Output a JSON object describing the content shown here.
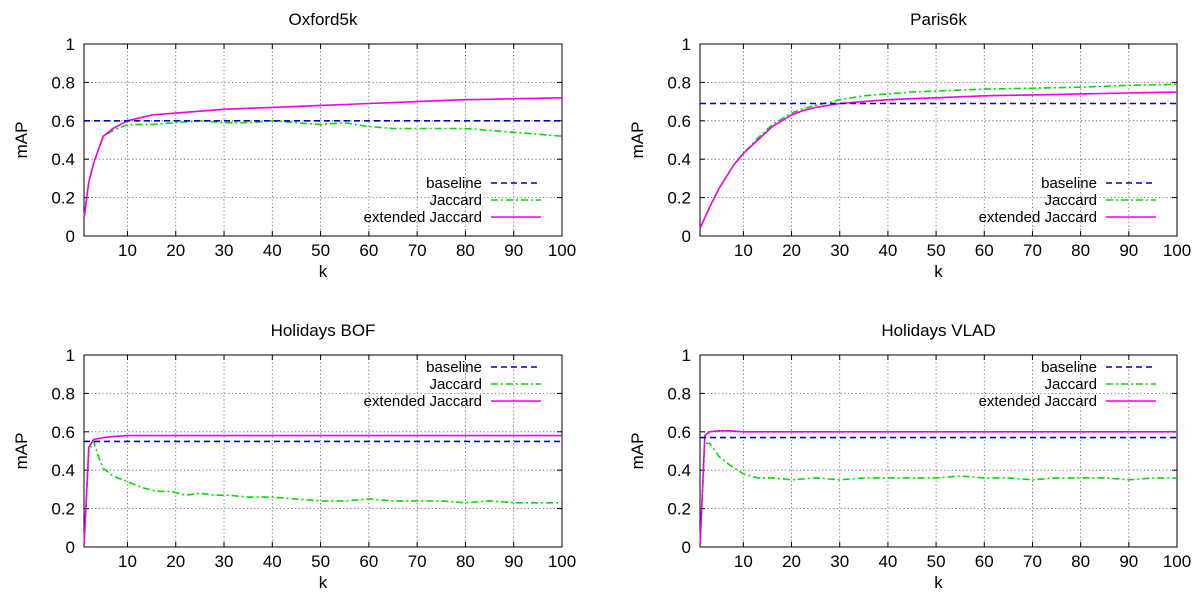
{
  "chart_data": [
    {
      "type": "line",
      "title": "Oxford5k",
      "xlabel": "k",
      "ylabel": "mAP",
      "xlim": [
        1,
        100
      ],
      "ylim": [
        0,
        1
      ],
      "xticks": [
        10,
        20,
        30,
        40,
        50,
        60,
        70,
        80,
        90,
        100
      ],
      "yticks": [
        0,
        0.2,
        0.4,
        0.6,
        0.8,
        1
      ],
      "grid": true,
      "legend_position": "bottom-right",
      "series": [
        {
          "name": "baseline",
          "color": "#0000cc",
          "dash": "dashed",
          "x": [
            1,
            100
          ],
          "y": [
            0.6,
            0.6
          ]
        },
        {
          "name": "Jaccard",
          "color": "#00dd00",
          "dash": "dash-dot",
          "x": [
            1,
            2,
            3,
            5,
            7,
            10,
            15,
            20,
            25,
            30,
            35,
            40,
            45,
            50,
            55,
            60,
            65,
            70,
            75,
            80,
            85,
            90,
            95,
            100
          ],
          "y": [
            0.09,
            0.28,
            0.38,
            0.52,
            0.55,
            0.58,
            0.58,
            0.59,
            0.6,
            0.59,
            0.59,
            0.6,
            0.59,
            0.58,
            0.59,
            0.57,
            0.56,
            0.56,
            0.56,
            0.56,
            0.55,
            0.54,
            0.53,
            0.52
          ]
        },
        {
          "name": "extended Jaccard",
          "color": "#ee00ee",
          "dash": "solid",
          "x": [
            1,
            2,
            3,
            5,
            7,
            10,
            15,
            20,
            25,
            30,
            35,
            40,
            45,
            50,
            55,
            60,
            65,
            70,
            75,
            80,
            85,
            90,
            95,
            100
          ],
          "y": [
            0.09,
            0.28,
            0.38,
            0.52,
            0.56,
            0.6,
            0.63,
            0.64,
            0.65,
            0.66,
            0.665,
            0.67,
            0.675,
            0.68,
            0.685,
            0.69,
            0.695,
            0.7,
            0.705,
            0.71,
            0.712,
            0.715,
            0.717,
            0.72
          ]
        }
      ]
    },
    {
      "type": "line",
      "title": "Paris6k",
      "xlabel": "k",
      "ylabel": "mAP",
      "xlim": [
        1,
        100
      ],
      "ylim": [
        0,
        1
      ],
      "xticks": [
        10,
        20,
        30,
        40,
        50,
        60,
        70,
        80,
        90,
        100
      ],
      "yticks": [
        0,
        0.2,
        0.4,
        0.6,
        0.8,
        1
      ],
      "grid": true,
      "legend_position": "bottom-right",
      "series": [
        {
          "name": "baseline",
          "color": "#0000cc",
          "dash": "dashed",
          "x": [
            1,
            100
          ],
          "y": [
            0.69,
            0.69
          ]
        },
        {
          "name": "Jaccard",
          "color": "#00dd00",
          "dash": "dash-dot",
          "x": [
            1,
            3,
            5,
            8,
            10,
            13,
            16,
            18,
            20,
            22,
            25,
            30,
            35,
            40,
            45,
            50,
            60,
            70,
            80,
            90,
            100
          ],
          "y": [
            0.04,
            0.15,
            0.25,
            0.37,
            0.43,
            0.51,
            0.58,
            0.61,
            0.64,
            0.66,
            0.68,
            0.71,
            0.73,
            0.74,
            0.75,
            0.755,
            0.765,
            0.77,
            0.775,
            0.785,
            0.79
          ]
        },
        {
          "name": "extended Jaccard",
          "color": "#ee00ee",
          "dash": "solid",
          "x": [
            1,
            3,
            5,
            8,
            10,
            13,
            16,
            18,
            20,
            22,
            25,
            30,
            35,
            40,
            45,
            50,
            60,
            70,
            80,
            90,
            100
          ],
          "y": [
            0.04,
            0.15,
            0.25,
            0.37,
            0.43,
            0.5,
            0.57,
            0.6,
            0.63,
            0.65,
            0.67,
            0.69,
            0.7,
            0.71,
            0.715,
            0.72,
            0.73,
            0.735,
            0.74,
            0.745,
            0.75
          ]
        }
      ]
    },
    {
      "type": "line",
      "title": "Holidays BOF",
      "xlabel": "k",
      "ylabel": "mAP",
      "xlim": [
        1,
        100
      ],
      "ylim": [
        0,
        1
      ],
      "xticks": [
        10,
        20,
        30,
        40,
        50,
        60,
        70,
        80,
        90,
        100
      ],
      "yticks": [
        0,
        0.2,
        0.4,
        0.6,
        0.8,
        1
      ],
      "grid": true,
      "legend_position": "top-right",
      "series": [
        {
          "name": "baseline",
          "color": "#0000cc",
          "dash": "dashed",
          "x": [
            1,
            100
          ],
          "y": [
            0.55,
            0.55
          ]
        },
        {
          "name": "Jaccard",
          "color": "#00dd00",
          "dash": "dash-dot",
          "x": [
            1,
            2,
            3,
            4,
            5,
            7,
            10,
            13,
            16,
            19,
            22,
            25,
            28,
            31,
            35,
            40,
            45,
            50,
            55,
            60,
            65,
            70,
            75,
            80,
            85,
            90,
            95,
            100
          ],
          "y": [
            0.0,
            0.5,
            0.55,
            0.47,
            0.41,
            0.37,
            0.34,
            0.31,
            0.29,
            0.29,
            0.27,
            0.28,
            0.27,
            0.27,
            0.26,
            0.26,
            0.25,
            0.24,
            0.24,
            0.25,
            0.24,
            0.24,
            0.24,
            0.23,
            0.24,
            0.23,
            0.23,
            0.23
          ]
        },
        {
          "name": "extended Jaccard",
          "color": "#ee00ee",
          "dash": "solid",
          "x": [
            1,
            2,
            3,
            5,
            7,
            10,
            20,
            30,
            40,
            50,
            60,
            70,
            80,
            90,
            100
          ],
          "y": [
            0.0,
            0.52,
            0.56,
            0.57,
            0.575,
            0.58,
            0.58,
            0.58,
            0.58,
            0.58,
            0.58,
            0.58,
            0.58,
            0.58,
            0.58
          ]
        }
      ]
    },
    {
      "type": "line",
      "title": "Holidays VLAD",
      "xlabel": "k",
      "ylabel": "mAP",
      "xlim": [
        1,
        100
      ],
      "ylim": [
        0,
        1
      ],
      "xticks": [
        10,
        20,
        30,
        40,
        50,
        60,
        70,
        80,
        90,
        100
      ],
      "yticks": [
        0,
        0.2,
        0.4,
        0.6,
        0.8,
        1
      ],
      "grid": true,
      "legend_position": "top-right",
      "series": [
        {
          "name": "baseline",
          "color": "#0000cc",
          "dash": "dashed",
          "x": [
            1,
            100
          ],
          "y": [
            0.57,
            0.57
          ]
        },
        {
          "name": "Jaccard",
          "color": "#00dd00",
          "dash": "dash-dot",
          "x": [
            1,
            2,
            3,
            5,
            7,
            10,
            13,
            16,
            20,
            25,
            30,
            35,
            40,
            45,
            50,
            55,
            60,
            65,
            70,
            75,
            80,
            85,
            90,
            95,
            100
          ],
          "y": [
            0.0,
            0.54,
            0.54,
            0.47,
            0.43,
            0.38,
            0.36,
            0.36,
            0.35,
            0.36,
            0.35,
            0.36,
            0.36,
            0.36,
            0.36,
            0.37,
            0.36,
            0.36,
            0.35,
            0.36,
            0.36,
            0.36,
            0.35,
            0.36,
            0.36
          ]
        },
        {
          "name": "extended Jaccard",
          "color": "#ee00ee",
          "dash": "solid",
          "x": [
            1,
            2,
            3,
            5,
            7,
            10,
            20,
            30,
            40,
            50,
            60,
            70,
            80,
            90,
            100
          ],
          "y": [
            0.0,
            0.58,
            0.6,
            0.605,
            0.605,
            0.6,
            0.6,
            0.6,
            0.6,
            0.6,
            0.6,
            0.6,
            0.6,
            0.6,
            0.6
          ]
        }
      ]
    }
  ]
}
